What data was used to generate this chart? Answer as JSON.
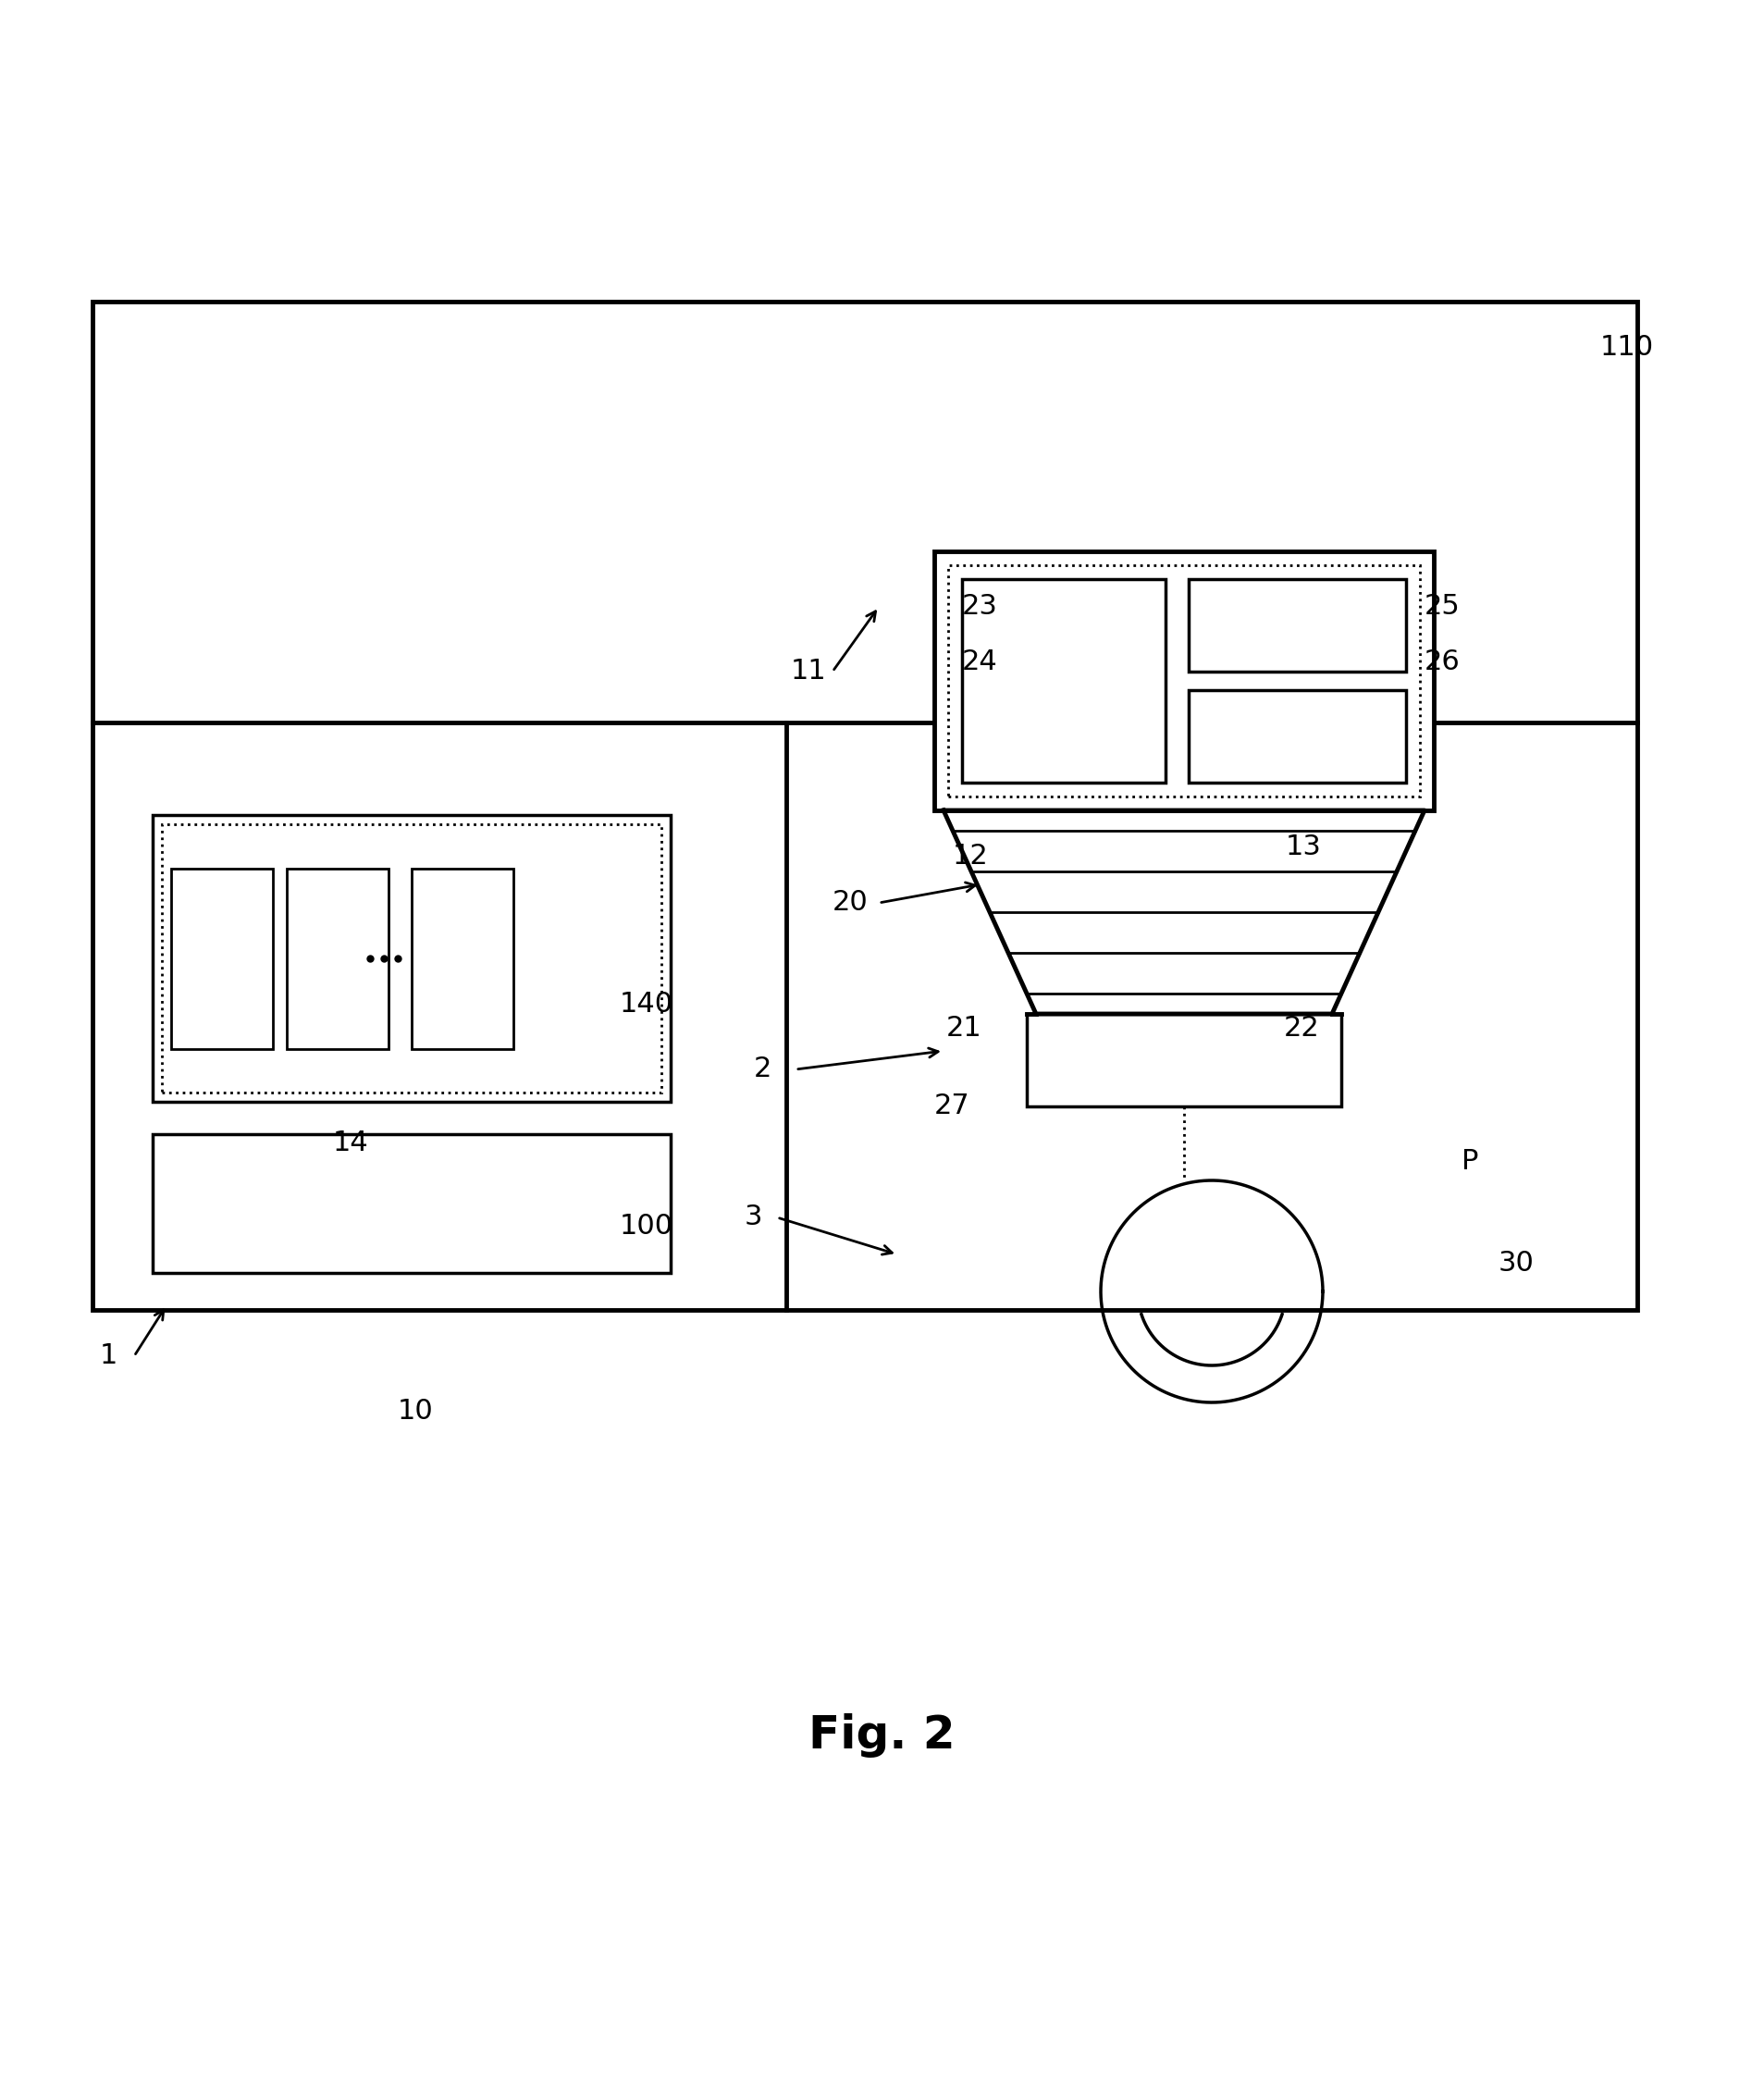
{
  "bg_color": "#ffffff",
  "lc": "#000000",
  "fig_width": 19.07,
  "fig_height": 22.56,
  "caption": "Fig. 2",
  "caption_fontsize": 36,
  "label_fontsize": 22
}
